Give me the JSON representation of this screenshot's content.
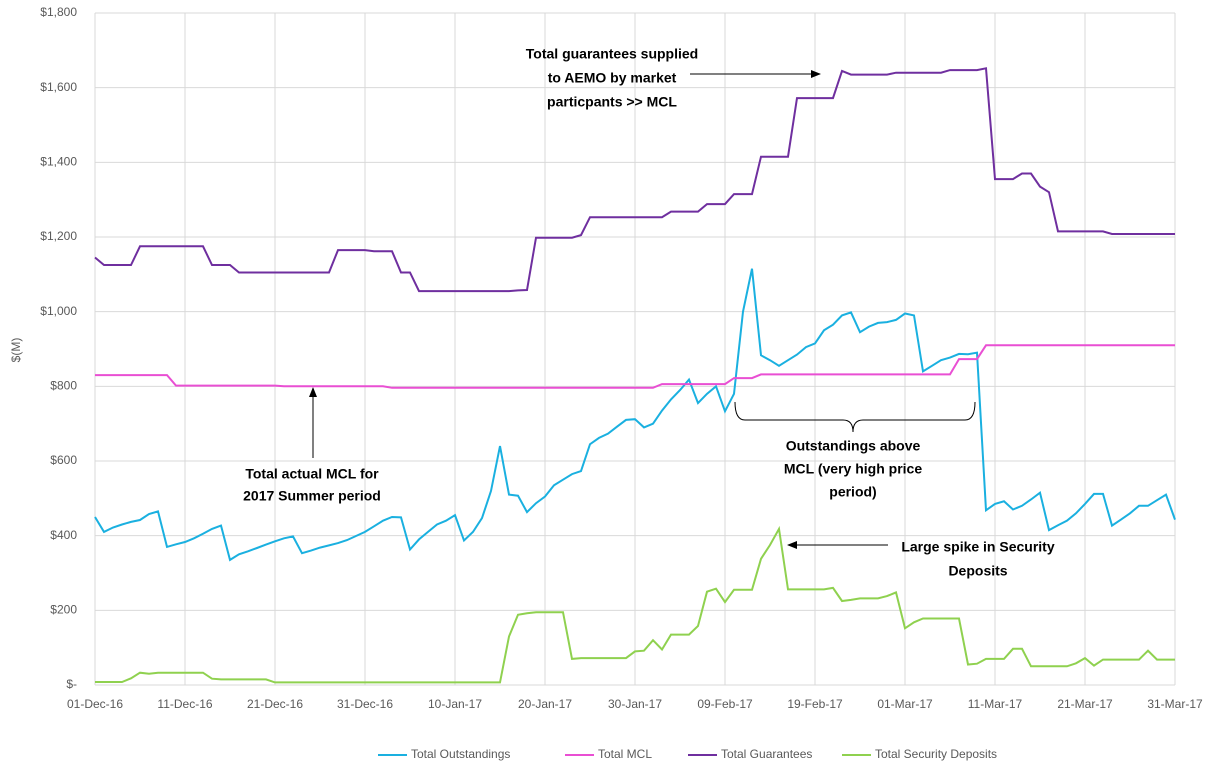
{
  "chart_data": {
    "type": "line",
    "y_label": "$(M)",
    "x": [
      "01-Dec-16",
      "02-Dec-16",
      "03-Dec-16",
      "04-Dec-16",
      "05-Dec-16",
      "06-Dec-16",
      "07-Dec-16",
      "08-Dec-16",
      "09-Dec-16",
      "10-Dec-16",
      "11-Dec-16",
      "12-Dec-16",
      "13-Dec-16",
      "14-Dec-16",
      "15-Dec-16",
      "16-Dec-16",
      "17-Dec-16",
      "18-Dec-16",
      "19-Dec-16",
      "20-Dec-16",
      "21-Dec-16",
      "22-Dec-16",
      "23-Dec-16",
      "24-Dec-16",
      "25-Dec-16",
      "26-Dec-16",
      "27-Dec-16",
      "28-Dec-16",
      "29-Dec-16",
      "30-Dec-16",
      "31-Dec-16",
      "01-Jan-17",
      "02-Jan-17",
      "03-Jan-17",
      "04-Jan-17",
      "05-Jan-17",
      "06-Jan-17",
      "07-Jan-17",
      "08-Jan-17",
      "09-Jan-17",
      "10-Jan-17",
      "11-Jan-17",
      "12-Jan-17",
      "13-Jan-17",
      "14-Jan-17",
      "15-Jan-17",
      "16-Jan-17",
      "17-Jan-17",
      "18-Jan-17",
      "19-Jan-17",
      "20-Jan-17",
      "21-Jan-17",
      "22-Jan-17",
      "23-Jan-17",
      "24-Jan-17",
      "25-Jan-17",
      "26-Jan-17",
      "27-Jan-17",
      "28-Jan-17",
      "29-Jan-17",
      "30-Jan-17",
      "31-Jan-17",
      "01-Feb-17",
      "02-Feb-17",
      "03-Feb-17",
      "04-Feb-17",
      "05-Feb-17",
      "06-Feb-17",
      "07-Feb-17",
      "08-Feb-17",
      "09-Feb-17",
      "10-Feb-17",
      "11-Feb-17",
      "12-Feb-17",
      "13-Feb-17",
      "14-Feb-17",
      "15-Feb-17",
      "16-Feb-17",
      "17-Feb-17",
      "18-Feb-17",
      "19-Feb-17",
      "20-Feb-17",
      "21-Feb-17",
      "22-Feb-17",
      "23-Feb-17",
      "24-Feb-17",
      "25-Feb-17",
      "26-Feb-17",
      "27-Feb-17",
      "28-Feb-17",
      "01-Mar-17",
      "02-Mar-17",
      "03-Mar-17",
      "04-Mar-17",
      "05-Mar-17",
      "06-Mar-17",
      "07-Mar-17",
      "08-Mar-17",
      "09-Mar-17",
      "10-Mar-17",
      "11-Mar-17",
      "12-Mar-17",
      "13-Mar-17",
      "14-Mar-17",
      "15-Mar-17",
      "16-Mar-17",
      "17-Mar-17",
      "18-Mar-17",
      "19-Mar-17",
      "20-Mar-17",
      "21-Mar-17",
      "22-Mar-17",
      "23-Mar-17",
      "24-Mar-17",
      "25-Mar-17",
      "26-Mar-17",
      "27-Mar-17",
      "28-Mar-17",
      "29-Mar-17",
      "30-Mar-17",
      "31-Mar-17"
    ],
    "xlim": [
      "01-Dec-16",
      "31-Mar-17"
    ],
    "xticks": [
      "01-Dec-16",
      "11-Dec-16",
      "21-Dec-16",
      "31-Dec-16",
      "10-Jan-17",
      "20-Jan-17",
      "30-Jan-17",
      "09-Feb-17",
      "19-Feb-17",
      "01-Mar-17",
      "11-Mar-17",
      "21-Mar-17",
      "31-Mar-17"
    ],
    "ylim": [
      0,
      1800
    ],
    "yticks": [
      {
        "value": 0,
        "label": "$-"
      },
      {
        "value": 200,
        "label": "$200"
      },
      {
        "value": 400,
        "label": "$400"
      },
      {
        "value": 600,
        "label": "$600"
      },
      {
        "value": 800,
        "label": "$800"
      },
      {
        "value": 1000,
        "label": "$1,000"
      },
      {
        "value": 1200,
        "label": "$1,200"
      },
      {
        "value": 1400,
        "label": "$1,400"
      },
      {
        "value": 1600,
        "label": "$1,600"
      },
      {
        "value": 1800,
        "label": "$1,800"
      }
    ],
    "grid": true,
    "legend": "bottom",
    "series": [
      {
        "name": "Total Outstandings",
        "color": "#1ab0e0",
        "values": [
          450,
          410,
          422,
          430,
          437,
          442,
          458,
          465,
          370,
          377,
          383,
          393,
          405,
          418,
          427,
          335,
          350,
          358,
          367,
          376,
          385,
          393,
          398,
          353,
          360,
          368,
          374,
          380,
          388,
          399,
          410,
          425,
          440,
          450,
          449,
          363,
          390,
          410,
          430,
          440,
          455,
          387,
          410,
          447,
          520,
          640,
          510,
          507,
          463,
          487,
          505,
          535,
          550,
          565,
          573,
          645,
          662,
          673,
          692,
          710,
          712,
          690,
          700,
          735,
          765,
          790,
          818,
          755,
          780,
          800,
          733,
          780,
          1000,
          1115,
          883,
          870,
          855,
          870,
          885,
          905,
          915,
          950,
          965,
          990,
          998,
          945,
          960,
          970,
          972,
          978,
          995,
          990,
          840,
          855,
          870,
          877,
          887,
          886,
          890,
          468,
          485,
          492,
          470,
          480,
          497,
          515,
          415,
          428,
          440,
          460,
          485,
          512,
          512,
          427,
          443,
          460,
          480,
          480,
          495,
          510,
          443
        ]
      },
      {
        "name": "Total MCL",
        "color": "#e94fd3",
        "values": [
          830,
          830,
          830,
          830,
          830,
          830,
          830,
          830,
          830,
          802,
          802,
          802,
          802,
          802,
          802,
          802,
          802,
          802,
          802,
          802,
          802,
          800,
          800,
          800,
          800,
          800,
          800,
          800,
          800,
          800,
          800,
          800,
          800,
          796,
          796,
          796,
          796,
          796,
          796,
          796,
          796,
          796,
          796,
          796,
          796,
          796,
          796,
          796,
          796,
          796,
          796,
          796,
          796,
          796,
          796,
          796,
          796,
          796,
          796,
          796,
          796,
          796,
          796,
          806,
          806,
          806,
          806,
          806,
          806,
          806,
          806,
          822,
          822,
          822,
          832,
          832,
          832,
          832,
          832,
          832,
          832,
          832,
          832,
          832,
          832,
          832,
          832,
          832,
          832,
          832,
          832,
          832,
          832,
          832,
          832,
          832,
          873,
          873,
          873,
          910,
          910,
          910,
          910,
          910,
          910,
          910,
          910,
          910,
          910,
          910,
          910,
          910,
          910,
          910,
          910,
          910,
          910,
          910,
          910,
          910,
          910
        ]
      },
      {
        "name": "Total Guarantees",
        "color": "#6f2f9f",
        "values": [
          1145,
          1125,
          1125,
          1125,
          1125,
          1175,
          1175,
          1175,
          1175,
          1175,
          1175,
          1175,
          1175,
          1125,
          1125,
          1125,
          1105,
          1105,
          1105,
          1105,
          1105,
          1105,
          1105,
          1105,
          1105,
          1105,
          1105,
          1165,
          1165,
          1165,
          1165,
          1162,
          1162,
          1162,
          1105,
          1105,
          1055,
          1055,
          1055,
          1055,
          1055,
          1055,
          1055,
          1055,
          1055,
          1055,
          1055,
          1057,
          1058,
          1198,
          1198,
          1198,
          1198,
          1198,
          1205,
          1253,
          1253,
          1253,
          1253,
          1253,
          1253,
          1253,
          1253,
          1253,
          1268,
          1268,
          1268,
          1268,
          1288,
          1288,
          1288,
          1315,
          1315,
          1315,
          1415,
          1415,
          1415,
          1415,
          1572,
          1572,
          1572,
          1572,
          1572,
          1645,
          1635,
          1635,
          1635,
          1635,
          1635,
          1640,
          1640,
          1640,
          1640,
          1640,
          1640,
          1647,
          1647,
          1647,
          1647,
          1652,
          1355,
          1355,
          1355,
          1370,
          1370,
          1335,
          1320,
          1215,
          1215,
          1215,
          1215,
          1215,
          1215,
          1208,
          1208,
          1208,
          1208,
          1208,
          1208,
          1208,
          1208
        ]
      },
      {
        "name": "Total Security Deposits",
        "color": "#8fd14f",
        "values": [
          8,
          8,
          8,
          8,
          18,
          33,
          30,
          33,
          33,
          33,
          33,
          33,
          33,
          17,
          15,
          15,
          15,
          15,
          15,
          15,
          7,
          7,
          7,
          7,
          7,
          7,
          7,
          7,
          7,
          7,
          7,
          7,
          7,
          7,
          7,
          7,
          7,
          7,
          7,
          7,
          7,
          7,
          7,
          7,
          7,
          7,
          130,
          188,
          192,
          195,
          195,
          195,
          195,
          70,
          72,
          72,
          72,
          72,
          72,
          72,
          90,
          92,
          120,
          95,
          135,
          135,
          135,
          158,
          250,
          258,
          222,
          255,
          255,
          255,
          338,
          375,
          418,
          256,
          256,
          256,
          256,
          256,
          260,
          225,
          228,
          232,
          232,
          232,
          238,
          248,
          152,
          168,
          178,
          178,
          178,
          178,
          178,
          55,
          57,
          70,
          70,
          70,
          97,
          97,
          50,
          50,
          50,
          50,
          50,
          58,
          72,
          52,
          68,
          68,
          68,
          68,
          68,
          92,
          68,
          68,
          68
        ]
      }
    ],
    "annotations": [
      {
        "lines": [
          "Total guarantees supplied",
          "to AEMO by market",
          "particpants >> MCL"
        ]
      },
      {
        "lines": [
          "Total actual MCL for",
          "2017 Summer period"
        ]
      },
      {
        "lines": [
          "Outstandings above",
          "MCL (very high price",
          "period)"
        ]
      },
      {
        "lines": [
          "Large spike in Security",
          "Deposits"
        ]
      }
    ]
  }
}
